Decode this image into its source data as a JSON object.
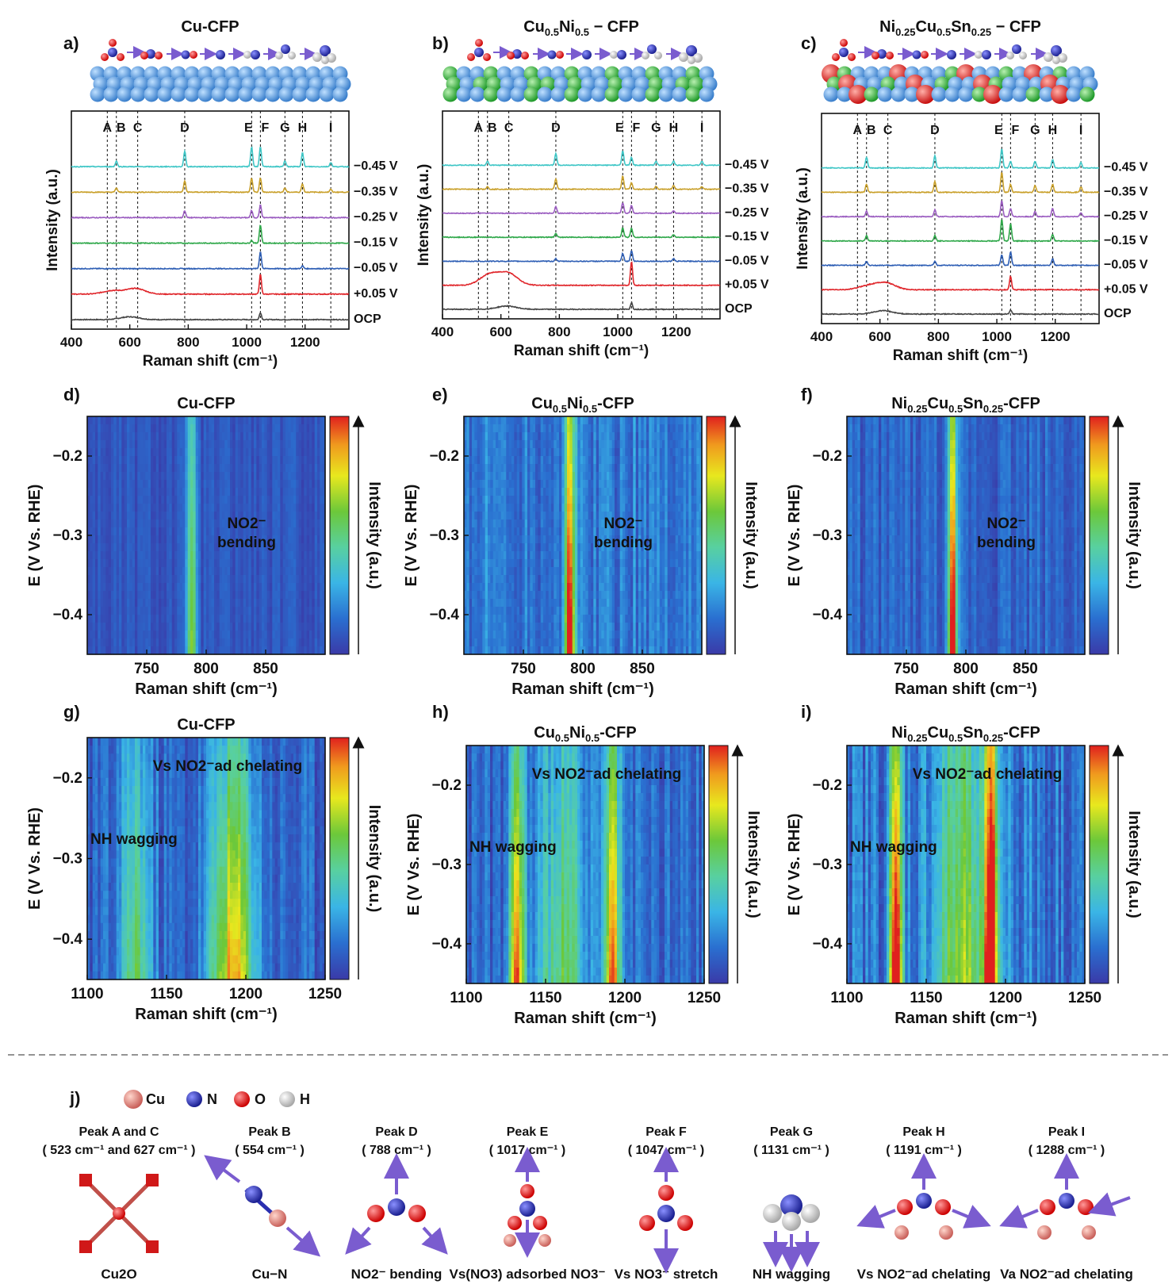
{
  "colors": {
    "ocp": "#444444",
    "p005": "#e0262b",
    "m005": "#2f5fb5",
    "m015": "#2fa84a",
    "m025": "#9a5cc0",
    "m035": "#c9a02a",
    "m045": "#3ec6c6",
    "cu_atom": "#e0877a",
    "n_atom": "#2a2fb0",
    "o_atom": "#e01a1a",
    "h_atom": "#e8e8e8",
    "arrow": "#7a5ccf",
    "cu_slab": "#4f93d6",
    "ni_slab": "#2fae3a",
    "sn_slab": "#e02020"
  },
  "panel_letters": {
    "a": "a)",
    "b": "b)",
    "c": "c)",
    "d": "d)",
    "e": "e)",
    "f": "f)",
    "g": "g)",
    "h": "h)",
    "i": "i)",
    "j": "j)"
  },
  "chart_data": [
    {
      "id": "a",
      "type": "line",
      "title": "Cu-CFP",
      "xlabel": "Raman shift (cm⁻¹)",
      "ylabel": "Intensity (a.u.)",
      "xlim": [
        400,
        1350
      ],
      "xticks": [
        400,
        600,
        800,
        1000,
        1200
      ],
      "peak_lines": [
        523,
        554,
        627,
        788,
        1017,
        1047,
        1131,
        1191,
        1288
      ],
      "peak_labels": [
        "A",
        "B",
        "C",
        "D",
        "E",
        "F",
        "G",
        "H",
        "I"
      ],
      "series": [
        {
          "name": "OCP",
          "peaks": [
            [
              1047,
              0.5
            ]
          ],
          "broad": [
            [
              600,
              0.2
            ]
          ]
        },
        {
          "name": "+0.05 V",
          "peaks": [
            [
              1047,
              1.4
            ]
          ],
          "broad": [
            [
              540,
              0.25
            ],
            [
              620,
              0.4
            ]
          ]
        },
        {
          "name": "−0.05 V",
          "peaks": [
            [
              1047,
              1.2
            ],
            [
              1191,
              0.2
            ]
          ],
          "broad": []
        },
        {
          "name": "−0.15 V",
          "peaks": [
            [
              1047,
              1.3
            ],
            [
              1017,
              0.2
            ]
          ],
          "broad": []
        },
        {
          "name": "−0.25 V",
          "peaks": [
            [
              788,
              0.5
            ],
            [
              1017,
              0.5
            ],
            [
              1047,
              0.9
            ]
          ],
          "broad": []
        },
        {
          "name": "−0.35 V",
          "peaks": [
            [
              554,
              0.3
            ],
            [
              788,
              0.8
            ],
            [
              1017,
              1.0
            ],
            [
              1047,
              1.0
            ],
            [
              1131,
              0.3
            ],
            [
              1191,
              0.6
            ],
            [
              1288,
              0.2
            ]
          ],
          "broad": []
        },
        {
          "name": "−0.45 V",
          "peaks": [
            [
              554,
              0.4
            ],
            [
              788,
              1.1
            ],
            [
              1017,
              1.4
            ],
            [
              1047,
              1.4
            ],
            [
              1131,
              0.4
            ],
            [
              1191,
              1.0
            ],
            [
              1288,
              0.3
            ]
          ],
          "broad": []
        }
      ]
    },
    {
      "id": "b",
      "type": "line",
      "title": "Cu0.5Ni0.5 − CFP",
      "title_rich": [
        "Cu",
        "0.5",
        "Ni",
        "0.5",
        " − CFP"
      ],
      "xlabel": "Raman shift (cm⁻¹)",
      "ylabel": "Intensity (a.u.)",
      "xlim": [
        400,
        1350
      ],
      "xticks": [
        400,
        600,
        800,
        1000,
        1200
      ],
      "peak_lines": [
        523,
        554,
        627,
        788,
        1017,
        1047,
        1131,
        1191,
        1288
      ],
      "peak_labels": [
        "A",
        "B",
        "C",
        "D",
        "E",
        "F",
        "G",
        "H",
        "I"
      ],
      "series": [
        {
          "name": "OCP",
          "peaks": [
            [
              1047,
              0.5
            ]
          ],
          "broad": [
            [
              620,
              0.25
            ]
          ]
        },
        {
          "name": "+0.05 V",
          "peaks": [
            [
              1047,
              1.8
            ]
          ],
          "broad": [
            [
              560,
              0.8
            ],
            [
              625,
              0.9
            ]
          ]
        },
        {
          "name": "−0.05 V",
          "peaks": [
            [
              1017,
              0.6
            ],
            [
              1047,
              0.8
            ],
            [
              788,
              0.2
            ],
            [
              1191,
              0.2
            ]
          ],
          "broad": []
        },
        {
          "name": "−0.15 V",
          "peaks": [
            [
              788,
              0.3
            ],
            [
              1017,
              0.7
            ],
            [
              1047,
              0.7
            ],
            [
              1191,
              0.2
            ]
          ],
          "broad": []
        },
        {
          "name": "−0.25 V",
          "peaks": [
            [
              788,
              0.5
            ],
            [
              1017,
              0.8
            ],
            [
              1047,
              0.6
            ],
            [
              1191,
              0.2
            ]
          ],
          "broad": []
        },
        {
          "name": "−0.35 V",
          "peaks": [
            [
              554,
              0.2
            ],
            [
              788,
              0.8
            ],
            [
              1017,
              1.0
            ],
            [
              1047,
              0.5
            ],
            [
              1131,
              0.2
            ],
            [
              1191,
              0.3
            ],
            [
              1288,
              0.2
            ]
          ],
          "broad": []
        },
        {
          "name": "−0.45 V",
          "peaks": [
            [
              554,
              0.3
            ],
            [
              788,
              0.9
            ],
            [
              1017,
              1.1
            ],
            [
              1047,
              0.6
            ],
            [
              1131,
              0.3
            ],
            [
              1191,
              0.3
            ],
            [
              1288,
              0.3
            ]
          ],
          "broad": []
        }
      ]
    },
    {
      "id": "c",
      "type": "line",
      "title": "Ni0.25Cu0.5Sn0.25 − CFP",
      "title_rich": [
        "Ni",
        "0.25",
        "Cu",
        "0.5",
        "Sn",
        "0.25",
        " − CFP"
      ],
      "xlabel": "Raman shift (cm⁻¹)",
      "ylabel": "Intensity (a.u.)",
      "xlim": [
        400,
        1350
      ],
      "xticks": [
        400,
        600,
        800,
        1000,
        1200
      ],
      "peak_lines": [
        523,
        554,
        627,
        788,
        1017,
        1047,
        1131,
        1191,
        1288
      ],
      "peak_labels": [
        "A",
        "B",
        "C",
        "D",
        "E",
        "F",
        "G",
        "H",
        "I"
      ],
      "series": [
        {
          "name": "OCP",
          "peaks": [
            [
              1047,
              0.3
            ]
          ],
          "broad": [
            [
              610,
              0.25
            ]
          ]
        },
        {
          "name": "+0.05 V",
          "peaks": [
            [
              1047,
              1.0
            ]
          ],
          "broad": [
            [
              560,
              0.3
            ],
            [
              620,
              0.5
            ]
          ]
        },
        {
          "name": "−0.05 V",
          "peaks": [
            [
              554,
              0.3
            ],
            [
              788,
              0.3
            ],
            [
              1017,
              0.8
            ],
            [
              1047,
              1.0
            ],
            [
              1191,
              0.5
            ]
          ],
          "broad": []
        },
        {
          "name": "−0.15 V",
          "peaks": [
            [
              554,
              0.4
            ],
            [
              788,
              0.4
            ],
            [
              1017,
              1.6
            ],
            [
              1047,
              1.3
            ],
            [
              1191,
              0.5
            ]
          ],
          "broad": []
        },
        {
          "name": "−0.25 V",
          "peaks": [
            [
              554,
              0.4
            ],
            [
              788,
              0.5
            ],
            [
              1017,
              1.2
            ],
            [
              1047,
              0.6
            ],
            [
              1131,
              0.4
            ],
            [
              1191,
              0.6
            ],
            [
              1288,
              0.3
            ]
          ],
          "broad": []
        },
        {
          "name": "−0.35 V",
          "peaks": [
            [
              554,
              0.6
            ],
            [
              788,
              0.8
            ],
            [
              1017,
              1.5
            ],
            [
              1047,
              0.6
            ],
            [
              1131,
              0.5
            ],
            [
              1191,
              0.6
            ],
            [
              1288,
              0.4
            ]
          ],
          "broad": []
        },
        {
          "name": "−0.45 V",
          "peaks": [
            [
              554,
              0.8
            ],
            [
              788,
              0.9
            ],
            [
              1017,
              1.4
            ],
            [
              1047,
              0.5
            ],
            [
              1131,
              0.5
            ],
            [
              1191,
              0.6
            ],
            [
              1288,
              0.4
            ]
          ],
          "broad": []
        }
      ]
    },
    {
      "id": "d",
      "type": "heatmap",
      "title": "Cu-CFP",
      "xlabel": "Raman shift (cm⁻¹)",
      "ylabel": "E (V Vs. RHE)",
      "xlim": [
        700,
        900
      ],
      "ylim": [
        -0.45,
        -0.15
      ],
      "xticks": [
        750,
        800,
        850
      ],
      "yticks": [
        -0.2,
        -0.3,
        -0.4
      ],
      "colorbar_label": "Intensity (a.u.)",
      "annotation": [
        "NO2⁻",
        "bending"
      ],
      "bands": [
        {
          "x": 788,
          "width": 4,
          "peak_top": 0.35,
          "peak_bottom": 0.6
        }
      ],
      "background": 0.08,
      "noise": 0.05
    },
    {
      "id": "e",
      "type": "heatmap",
      "title": "Cu0.5Ni0.5-CFP",
      "title_rich": [
        "Cu",
        "0.5",
        "Ni",
        "0.5",
        "-CFP"
      ],
      "xlabel": "Raman shift (cm⁻¹)",
      "ylabel": "E (V Vs. RHE)",
      "xlim": [
        700,
        900
      ],
      "ylim": [
        -0.45,
        -0.15
      ],
      "xticks": [
        750,
        800,
        850
      ],
      "yticks": [
        -0.2,
        -0.3,
        -0.4
      ],
      "colorbar_label": "Intensity (a.u.)",
      "annotation": [
        "NO2⁻",
        "bending"
      ],
      "bands": [
        {
          "x": 789,
          "width": 4,
          "peak_top": 0.55,
          "peak_bottom": 1.0
        }
      ],
      "background": 0.18,
      "noise": 0.1
    },
    {
      "id": "f",
      "type": "heatmap",
      "title": "Ni0.25Cu0.5Sn0.25-CFP",
      "title_rich": [
        "Ni",
        "0.25",
        "Cu",
        "0.5",
        "Sn",
        "0.25",
        "-CFP"
      ],
      "xlabel": "Raman shift (cm⁻¹)",
      "ylabel": "E (V Vs. RHE)",
      "xlim": [
        700,
        900
      ],
      "ylim": [
        -0.45,
        -0.15
      ],
      "xticks": [
        750,
        800,
        850
      ],
      "yticks": [
        -0.2,
        -0.3,
        -0.4
      ],
      "colorbar_label": "Intensity (a.u.)",
      "annotation": [
        "NO2⁻",
        "bending"
      ],
      "bands": [
        {
          "x": 789,
          "width": 3.5,
          "peak_top": 0.5,
          "peak_bottom": 1.0
        }
      ],
      "background": 0.12,
      "noise": 0.08
    },
    {
      "id": "g",
      "type": "heatmap",
      "title": "Cu-CFP",
      "xlabel": "Raman shift (cm⁻¹)",
      "ylabel": "E (V Vs. RHE)",
      "xlim": [
        1100,
        1250
      ],
      "ylim": [
        -0.45,
        -0.15
      ],
      "xticks": [
        1100,
        1150,
        1200,
        1250
      ],
      "yticks": [
        -0.2,
        -0.3,
        -0.4
      ],
      "colorbar_label": "Intensity (a.u.)",
      "annotation_top": [
        "Vs NO2⁻ad chelating"
      ],
      "annotation_left": "NH wagging",
      "bands": [
        {
          "x": 1131,
          "width": 9,
          "peak_top": 0.2,
          "peak_bottom": 0.45
        },
        {
          "x": 1192,
          "width": 14,
          "peak_top": 0.3,
          "peak_bottom": 0.72
        }
      ],
      "background": 0.12,
      "noise": 0.1
    },
    {
      "id": "h",
      "type": "heatmap",
      "title": "Cu0.5Ni0.5-CFP",
      "title_rich": [
        "Cu",
        "0.5",
        "Ni",
        "0.5",
        "-CFP"
      ],
      "xlabel": "Raman shift (cm⁻¹)",
      "ylabel": "E (V Vs. RHE)",
      "xlim": [
        1100,
        1250
      ],
      "ylim": [
        -0.45,
        -0.15
      ],
      "xticks": [
        1100,
        1150,
        1200,
        1250
      ],
      "yticks": [
        -0.2,
        -0.3,
        -0.4
      ],
      "colorbar_label": "Intensity (a.u.)",
      "annotation_top": [
        "Vs NO2⁻ad chelating"
      ],
      "annotation_left": "NH wagging",
      "bands": [
        {
          "x": 1132,
          "width": 5,
          "peak_top": 0.35,
          "peak_bottom": 0.82
        },
        {
          "x": 1192,
          "width": 5,
          "peak_top": 0.4,
          "peak_bottom": 0.8
        },
        {
          "x": 1160,
          "width": 14,
          "peak_top": 0.25,
          "peak_bottom": 0.45
        }
      ],
      "background": 0.12,
      "noise": 0.1
    },
    {
      "id": "i",
      "type": "heatmap",
      "title": "Ni0.25Cu0.5Sn0.25-CFP",
      "title_rich": [
        "Ni",
        "0.25",
        "Cu",
        "0.5",
        "Sn",
        "0.25",
        "-CFP"
      ],
      "xlabel": "Raman shift (cm⁻¹)",
      "ylabel": "E (V Vs. RHE)",
      "xlim": [
        1100,
        1250
      ],
      "ylim": [
        -0.45,
        -0.15
      ],
      "xticks": [
        1100,
        1150,
        1200,
        1250
      ],
      "yticks": [
        -0.2,
        -0.3,
        -0.4
      ],
      "colorbar_label": "Intensity (a.u.)",
      "annotation_top": [
        "Vs NO2⁻ad chelating"
      ],
      "annotation_left": "NH wagging",
      "bands": [
        {
          "x": 1131,
          "width": 4,
          "peak_top": 0.45,
          "peak_bottom": 1.0
        },
        {
          "x": 1191,
          "width": 4,
          "peak_top": 0.45,
          "peak_bottom": 0.85
        },
        {
          "x": 1175,
          "width": 20,
          "peak_top": 0.3,
          "peak_bottom": 0.5
        }
      ],
      "background": 0.15,
      "noise": 0.12
    }
  ],
  "panel_j": {
    "legend": [
      "Cu",
      "N",
      "O",
      "H"
    ],
    "peaks": [
      {
        "name": "Peak A and C",
        "shift": "( 523 cm⁻¹ and 627 cm⁻¹ )",
        "caption": "Cu2O"
      },
      {
        "name": "Peak B",
        "shift": "( 554 cm⁻¹ )",
        "caption": "Cu−N"
      },
      {
        "name": "Peak D",
        "shift": "( 788 cm⁻¹ )",
        "caption": "NO2⁻ bending"
      },
      {
        "name": "Peak E",
        "shift": "( 1017 cm⁻¹ )",
        "caption": "Vs(NO3) adsorbed NO3⁻"
      },
      {
        "name": "Peak F",
        "shift": "( 1047 cm⁻¹ )",
        "caption": "Vs NO3⁻ stretch"
      },
      {
        "name": "Peak G",
        "shift": "( 1131 cm⁻¹ )",
        "caption": "NH wagging"
      },
      {
        "name": "Peak H",
        "shift": "( 1191 cm⁻¹ )",
        "caption": "Vs NO2⁻ad chelating"
      },
      {
        "name": "Peak I",
        "shift": "( 1288 cm⁻¹ )",
        "caption": "Va NO2⁻ad chelating"
      }
    ]
  }
}
